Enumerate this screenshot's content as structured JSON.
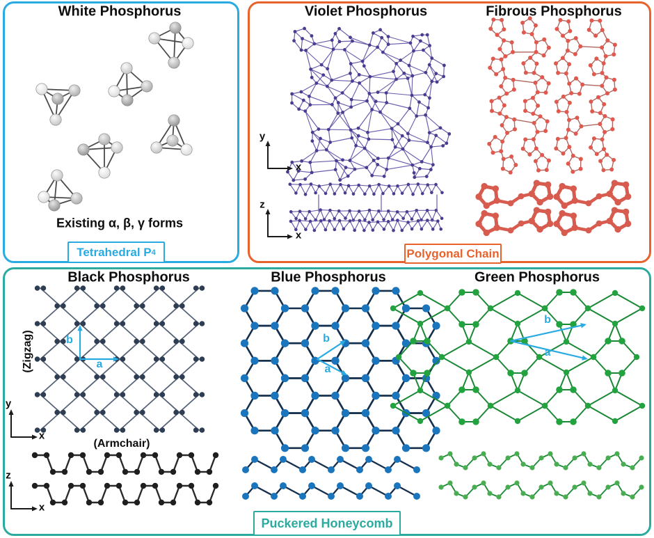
{
  "figure": {
    "white": {
      "title": "White Phosphorus",
      "subtitle": "Existing α, β, γ forms",
      "tab_label": "Tetrahedral P",
      "tab_subscript": "4"
    },
    "polygonal": {
      "violet_title": "Violet Phosphorus",
      "fibrous_title": "Fibrous Phosphorus",
      "tab_label": "Polygonal Chain"
    },
    "puckered": {
      "black_title": "Black Phosphorus",
      "blue_title": "Blue Phosphorus",
      "green_title": "Green Phosphorus",
      "tab_label": "Puckered Honeycomb",
      "zigzag": "(Zigzag)",
      "armchair": "(Armchair)"
    }
  },
  "axis_labels": {
    "x": "x",
    "y": "y",
    "z": "z"
  },
  "vector_labels": {
    "a": "a",
    "b": "b"
  },
  "colors": {
    "cyan_accent": "#29ABE2",
    "orange_accent": "#E8622B",
    "teal_accent": "#2BABA0",
    "vector_blue": "#29ABE2",
    "axis_black": "#1a1a1a",
    "white_p_bond": "#4a4a4a",
    "violet_bond": "#6A5BAD",
    "violet_dot": "#4A3C8F",
    "fibrous_bond": "#B0655D",
    "fibrous_dot": "#E0594E",
    "fibrous_thick": "#D75C4F",
    "black_dot": "#2E3D52",
    "black_bond": "#566377",
    "black_side": "#1F1F1F",
    "blue_dot": "#1B75BC",
    "blue_bond": "#15304E",
    "green_dot": "#23A33F",
    "green_bond": "#1B8836",
    "green_side_dot": "#49AE52"
  }
}
